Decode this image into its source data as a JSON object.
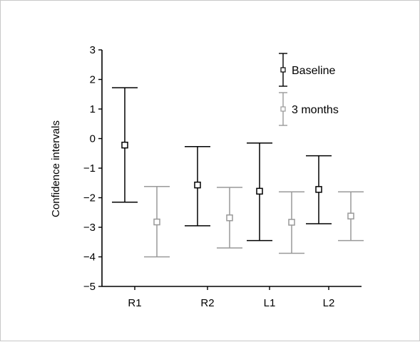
{
  "chart_data": {
    "type": "error-bar",
    "categories": [
      "R1",
      "R2",
      "L1",
      "L2"
    ],
    "ylabel": "Confidence intervals",
    "xlabel": "",
    "ylim": [
      -5,
      3
    ],
    "yticks": [
      3,
      2,
      1,
      0,
      -1,
      -2,
      -3,
      -4,
      -5
    ],
    "grid": false,
    "legend_placement": "top-right",
    "series": [
      {
        "name": "Baseline",
        "color": "#000000",
        "mean": [
          -0.22,
          -1.57,
          -1.78,
          -1.72
        ],
        "upper": [
          1.72,
          -0.27,
          -0.15,
          -0.58
        ],
        "lower": [
          -2.15,
          -2.95,
          -3.45,
          -2.88
        ]
      },
      {
        "name": "3 months",
        "color": "#999999",
        "mean": [
          -2.82,
          -2.68,
          -2.83,
          -2.62
        ],
        "upper": [
          -1.62,
          -1.65,
          -1.8,
          -1.8
        ],
        "lower": [
          -4.0,
          -3.7,
          -3.88,
          -3.45
        ]
      }
    ],
    "y_tick_labels": [
      "3",
      "2",
      "1",
      "0",
      "−1",
      "−2",
      "−3",
      "−4",
      "−5"
    ]
  }
}
